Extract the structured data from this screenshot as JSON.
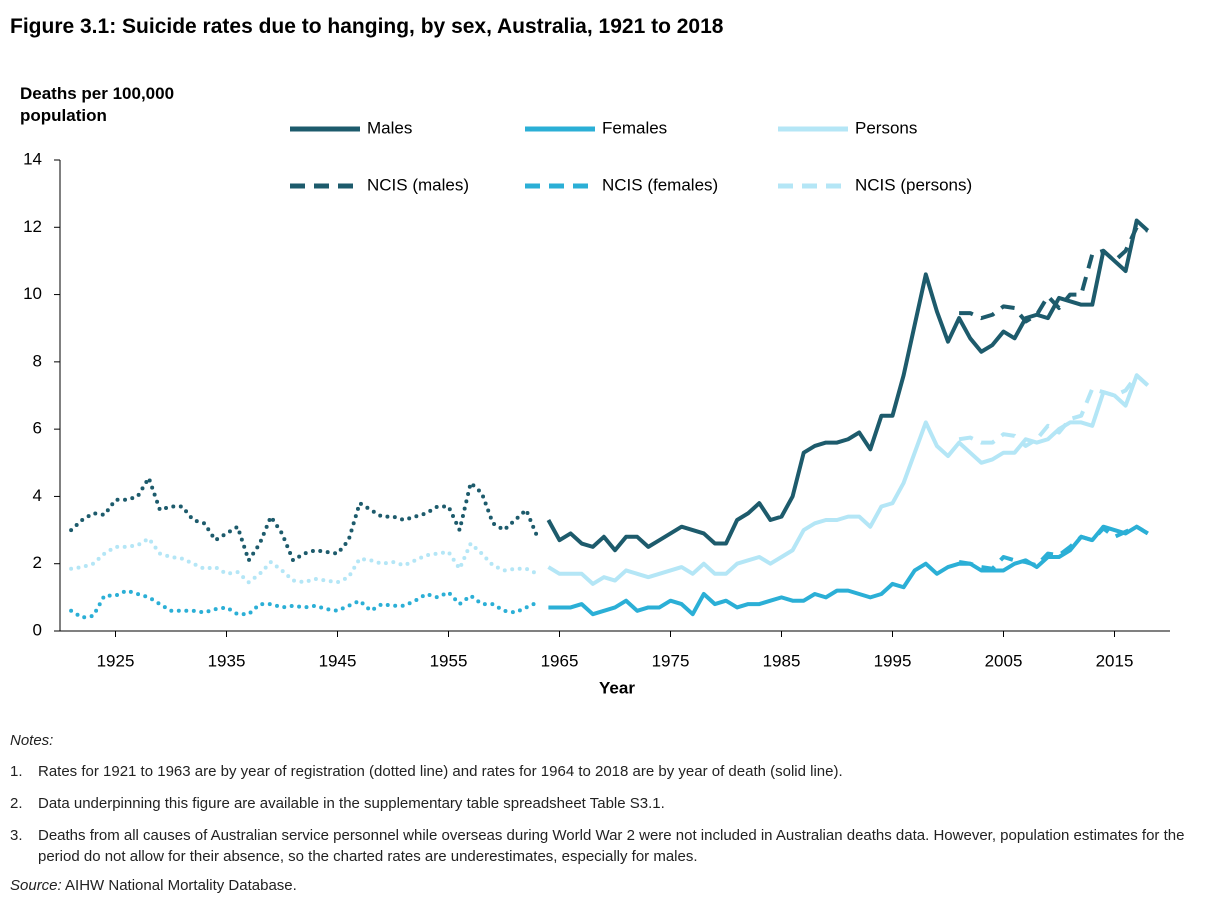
{
  "chart_data": {
    "type": "line",
    "title": "Figure 3.1: Suicide rates due to hanging, by sex, Australia, 1921 to 2018",
    "y_label": "Deaths per 100,000 population",
    "x_label": "Year",
    "dotted_until": 1963,
    "xlim": [
      1920,
      2020
    ],
    "xticks": [
      1925,
      1935,
      1945,
      1955,
      1965,
      1975,
      1985,
      1995,
      2005,
      2015
    ],
    "ylim": [
      0,
      14
    ],
    "yticks": [
      0,
      2,
      4,
      6,
      8,
      10,
      12,
      14
    ],
    "x": [
      1921,
      1922,
      1923,
      1924,
      1925,
      1926,
      1927,
      1928,
      1929,
      1930,
      1931,
      1932,
      1933,
      1934,
      1935,
      1936,
      1937,
      1938,
      1939,
      1940,
      1941,
      1942,
      1943,
      1944,
      1945,
      1946,
      1947,
      1948,
      1949,
      1950,
      1951,
      1952,
      1953,
      1954,
      1955,
      1956,
      1957,
      1958,
      1959,
      1960,
      1961,
      1962,
      1963,
      1964,
      1965,
      1966,
      1967,
      1968,
      1969,
      1970,
      1971,
      1972,
      1973,
      1974,
      1975,
      1976,
      1977,
      1978,
      1979,
      1980,
      1981,
      1982,
      1983,
      1984,
      1985,
      1986,
      1987,
      1988,
      1989,
      1990,
      1991,
      1992,
      1993,
      1994,
      1995,
      1996,
      1997,
      1998,
      1999,
      2000,
      2001,
      2002,
      2003,
      2004,
      2005,
      2006,
      2007,
      2008,
      2009,
      2010,
      2011,
      2012,
      2013,
      2014,
      2015,
      2016,
      2017,
      2018
    ],
    "series": [
      {
        "name": "Males",
        "color": "#1d5b6c",
        "dash": "solid",
        "values": [
          3.0,
          3.3,
          3.5,
          3.45,
          3.9,
          3.9,
          4.0,
          4.55,
          3.6,
          3.7,
          3.7,
          3.3,
          3.2,
          2.7,
          2.9,
          3.1,
          2.1,
          2.6,
          3.4,
          2.9,
          2.1,
          2.3,
          2.4,
          2.35,
          2.3,
          2.7,
          3.8,
          3.6,
          3.4,
          3.4,
          3.3,
          3.4,
          3.5,
          3.7,
          3.7,
          3.0,
          4.4,
          4.1,
          3.2,
          3.0,
          3.3,
          3.6,
          2.8,
          3.3,
          2.7,
          2.9,
          2.6,
          2.5,
          2.8,
          2.4,
          2.8,
          2.8,
          2.5,
          2.7,
          2.9,
          3.1,
          3.0,
          2.9,
          2.6,
          2.6,
          3.3,
          3.5,
          3.8,
          3.3,
          3.4,
          4.0,
          5.3,
          5.5,
          5.6,
          5.6,
          5.7,
          5.9,
          5.4,
          6.4,
          6.4,
          7.6,
          9.1,
          10.6,
          9.5,
          8.6,
          9.3,
          8.7,
          8.3,
          8.5,
          8.9,
          8.7,
          9.3,
          9.4,
          9.3,
          9.9,
          9.8,
          9.7,
          9.7,
          11.3,
          11.0,
          10.7,
          12.2,
          11.9
        ]
      },
      {
        "name": "Females",
        "color": "#2bafd6",
        "dash": "solid",
        "values": [
          0.6,
          0.4,
          0.45,
          1.05,
          1.05,
          1.2,
          1.1,
          1.0,
          0.8,
          0.6,
          0.6,
          0.6,
          0.55,
          0.65,
          0.7,
          0.5,
          0.5,
          0.8,
          0.8,
          0.7,
          0.75,
          0.7,
          0.75,
          0.65,
          0.6,
          0.75,
          0.9,
          0.6,
          0.8,
          0.75,
          0.75,
          0.9,
          1.1,
          1.0,
          1.15,
          0.8,
          1.05,
          0.8,
          0.8,
          0.6,
          0.55,
          0.7,
          0.85,
          0.7,
          0.7,
          0.7,
          0.8,
          0.5,
          0.6,
          0.7,
          0.9,
          0.6,
          0.7,
          0.7,
          0.9,
          0.8,
          0.5,
          1.1,
          0.8,
          0.9,
          0.7,
          0.8,
          0.8,
          0.9,
          1.0,
          0.9,
          0.9,
          1.1,
          1.0,
          1.2,
          1.2,
          1.1,
          1.0,
          1.1,
          1.4,
          1.3,
          1.8,
          2.0,
          1.7,
          1.9,
          2.0,
          2.0,
          1.8,
          1.8,
          1.8,
          2.0,
          2.1,
          1.9,
          2.2,
          2.2,
          2.4,
          2.8,
          2.7,
          3.1,
          3.0,
          2.9,
          3.1,
          2.9
        ]
      },
      {
        "name": "Persons",
        "color": "#b4e6f6",
        "dash": "solid",
        "values": [
          1.85,
          1.9,
          2.0,
          2.3,
          2.5,
          2.5,
          2.55,
          2.75,
          2.3,
          2.2,
          2.15,
          2.0,
          1.85,
          1.9,
          1.7,
          1.75,
          1.45,
          1.7,
          2.05,
          1.8,
          1.5,
          1.45,
          1.55,
          1.5,
          1.45,
          1.6,
          2.15,
          2.1,
          2.0,
          2.05,
          1.95,
          2.1,
          2.25,
          2.3,
          2.35,
          1.85,
          2.6,
          2.3,
          1.95,
          1.8,
          1.85,
          1.85,
          1.7,
          1.9,
          1.7,
          1.7,
          1.7,
          1.4,
          1.6,
          1.5,
          1.8,
          1.7,
          1.6,
          1.7,
          1.8,
          1.9,
          1.7,
          2.0,
          1.7,
          1.7,
          2.0,
          2.1,
          2.2,
          2.0,
          2.2,
          2.4,
          3.0,
          3.2,
          3.3,
          3.3,
          3.4,
          3.4,
          3.1,
          3.7,
          3.8,
          4.4,
          5.3,
          6.2,
          5.5,
          5.2,
          5.6,
          5.3,
          5.0,
          5.1,
          5.3,
          5.3,
          5.7,
          5.6,
          5.7,
          6.0,
          6.2,
          6.2,
          6.1,
          7.1,
          7.0,
          6.7,
          7.6,
          7.3
        ]
      },
      {
        "name": "NCIS (males)",
        "color": "#1d5b6c",
        "dash": "dashed",
        "values": [
          null,
          null,
          null,
          null,
          null,
          null,
          null,
          null,
          null,
          null,
          null,
          null,
          null,
          null,
          null,
          null,
          null,
          null,
          null,
          null,
          null,
          null,
          null,
          null,
          null,
          null,
          null,
          null,
          null,
          null,
          null,
          null,
          null,
          null,
          null,
          null,
          null,
          null,
          null,
          null,
          null,
          null,
          null,
          null,
          null,
          null,
          null,
          null,
          null,
          null,
          null,
          null,
          null,
          null,
          null,
          null,
          null,
          null,
          null,
          null,
          null,
          null,
          null,
          null,
          null,
          null,
          null,
          null,
          null,
          null,
          null,
          null,
          null,
          null,
          null,
          null,
          null,
          null,
          null,
          null,
          9.45,
          9.45,
          9.3,
          9.4,
          9.65,
          9.6,
          9.2,
          9.4,
          9.95,
          9.6,
          10.0,
          10.0,
          11.2,
          11.3,
          11.0,
          11.3,
          12.0,
          11.9
        ]
      },
      {
        "name": "NCIS (females)",
        "color": "#2bafd6",
        "dash": "dashed",
        "values": [
          null,
          null,
          null,
          null,
          null,
          null,
          null,
          null,
          null,
          null,
          null,
          null,
          null,
          null,
          null,
          null,
          null,
          null,
          null,
          null,
          null,
          null,
          null,
          null,
          null,
          null,
          null,
          null,
          null,
          null,
          null,
          null,
          null,
          null,
          null,
          null,
          null,
          null,
          null,
          null,
          null,
          null,
          null,
          null,
          null,
          null,
          null,
          null,
          null,
          null,
          null,
          null,
          null,
          null,
          null,
          null,
          null,
          null,
          null,
          null,
          null,
          null,
          null,
          null,
          null,
          null,
          null,
          null,
          null,
          null,
          null,
          null,
          null,
          null,
          null,
          null,
          null,
          null,
          null,
          null,
          2.05,
          2.0,
          1.9,
          1.85,
          2.2,
          2.1,
          2.05,
          1.95,
          2.3,
          2.25,
          2.5,
          2.8,
          2.7,
          3.05,
          2.8,
          2.95,
          3.1,
          2.9
        ]
      },
      {
        "name": "NCIS (persons)",
        "color": "#b4e6f6",
        "dash": "dashed",
        "values": [
          null,
          null,
          null,
          null,
          null,
          null,
          null,
          null,
          null,
          null,
          null,
          null,
          null,
          null,
          null,
          null,
          null,
          null,
          null,
          null,
          null,
          null,
          null,
          null,
          null,
          null,
          null,
          null,
          null,
          null,
          null,
          null,
          null,
          null,
          null,
          null,
          null,
          null,
          null,
          null,
          null,
          null,
          null,
          null,
          null,
          null,
          null,
          null,
          null,
          null,
          null,
          null,
          null,
          null,
          null,
          null,
          null,
          null,
          null,
          null,
          null,
          null,
          null,
          null,
          null,
          null,
          null,
          null,
          null,
          null,
          null,
          null,
          null,
          null,
          null,
          null,
          null,
          null,
          null,
          null,
          5.7,
          5.75,
          5.6,
          5.6,
          5.85,
          5.8,
          5.5,
          5.7,
          6.1,
          5.9,
          6.3,
          6.4,
          7.2,
          7.1,
          7.0,
          7.15,
          7.6,
          7.3
        ]
      }
    ]
  },
  "notes": {
    "title": "Notes:",
    "items": [
      {
        "number": "1.",
        "text": "Rates for 1921 to 1963 are by year of registration (dotted line) and rates for 1964 to 2018 are by year of death (solid line)."
      },
      {
        "number": "2.",
        "text": "Data underpinning this figure are available in the supplementary table spreadsheet Table S3.1."
      },
      {
        "number": "3.",
        "text": "Deaths from all causes of Australian service personnel while overseas during World War 2 were not included in Australian deaths data. However, population estimates for the period do not allow for their absence, so the charted rates are underestimates, especially for males."
      }
    ]
  },
  "source": {
    "label": "Source:",
    "text": "AIHW National Mortality Database."
  }
}
